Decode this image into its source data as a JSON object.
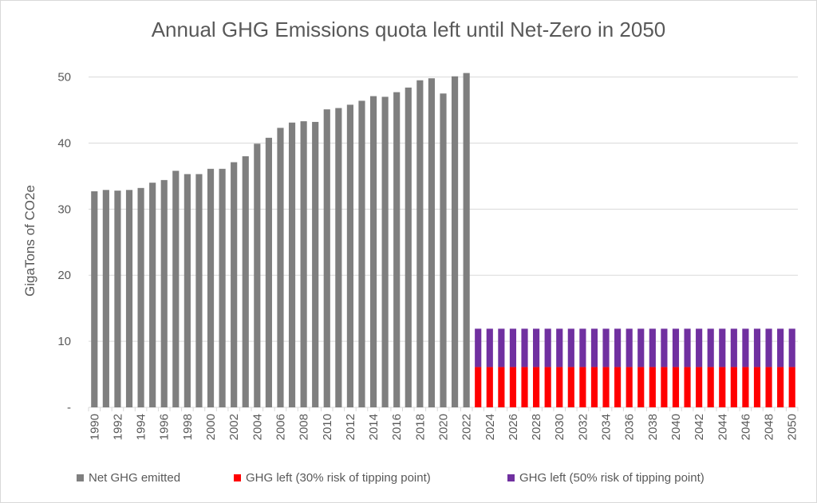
{
  "chart_data": {
    "type": "bar",
    "stacked": true,
    "title": "Annual GHG Emissions quota left until Net-Zero in 2050",
    "ylabel": "GigaTons of CO2e",
    "xlabel": "",
    "ylim": [
      0,
      52
    ],
    "yticks": [
      "-",
      "10",
      "20",
      "30",
      "40",
      "50"
    ],
    "ytick_values": [
      0,
      10,
      20,
      30,
      40,
      50
    ],
    "gridlines": true,
    "legend_position": "bottom",
    "categories": [
      1990,
      1991,
      1992,
      1993,
      1994,
      1995,
      1996,
      1997,
      1998,
      1999,
      2000,
      2001,
      2002,
      2003,
      2004,
      2005,
      2006,
      2007,
      2008,
      2009,
      2010,
      2011,
      2012,
      2013,
      2014,
      2015,
      2016,
      2017,
      2018,
      2019,
      2020,
      2021,
      2022,
      2023,
      2024,
      2025,
      2026,
      2027,
      2028,
      2029,
      2030,
      2031,
      2032,
      2033,
      2034,
      2035,
      2036,
      2037,
      2038,
      2039,
      2040,
      2041,
      2042,
      2043,
      2044,
      2045,
      2046,
      2047,
      2048,
      2049,
      2050
    ],
    "series": [
      {
        "name": "Net GHG emitted",
        "color": "#7f7f7f",
        "values": [
          32.7,
          32.9,
          32.8,
          32.9,
          33.2,
          34.0,
          34.4,
          35.8,
          35.3,
          35.3,
          36.1,
          36.1,
          37.1,
          38.0,
          39.9,
          40.8,
          42.3,
          43.1,
          43.3,
          43.2,
          45.1,
          45.3,
          45.8,
          46.4,
          47.1,
          47.0,
          47.7,
          48.4,
          49.5,
          49.8,
          47.5,
          50.1,
          50.6,
          0,
          0,
          0,
          0,
          0,
          0,
          0,
          0,
          0,
          0,
          0,
          0,
          0,
          0,
          0,
          0,
          0,
          0,
          0,
          0,
          0,
          0,
          0,
          0,
          0,
          0,
          0,
          0
        ]
      },
      {
        "name": "GHG left (30% risk of tipping point)",
        "color": "#ff0000",
        "values": [
          0,
          0,
          0,
          0,
          0,
          0,
          0,
          0,
          0,
          0,
          0,
          0,
          0,
          0,
          0,
          0,
          0,
          0,
          0,
          0,
          0,
          0,
          0,
          0,
          0,
          0,
          0,
          0,
          0,
          0,
          0,
          0,
          0,
          6.1,
          6.1,
          6.1,
          6.1,
          6.1,
          6.1,
          6.1,
          6.1,
          6.1,
          6.1,
          6.1,
          6.1,
          6.1,
          6.1,
          6.1,
          6.1,
          6.1,
          6.1,
          6.1,
          6.1,
          6.1,
          6.1,
          6.1,
          6.1,
          6.1,
          6.1,
          6.1,
          6.1
        ]
      },
      {
        "name": "GHG left (50% risk of tipping point)",
        "color": "#7030a0",
        "values": [
          0,
          0,
          0,
          0,
          0,
          0,
          0,
          0,
          0,
          0,
          0,
          0,
          0,
          0,
          0,
          0,
          0,
          0,
          0,
          0,
          0,
          0,
          0,
          0,
          0,
          0,
          0,
          0,
          0,
          0,
          0,
          0,
          0,
          5.8,
          5.8,
          5.8,
          5.8,
          5.8,
          5.8,
          5.8,
          5.8,
          5.8,
          5.8,
          5.8,
          5.8,
          5.8,
          5.8,
          5.8,
          5.8,
          5.8,
          5.8,
          5.8,
          5.8,
          5.8,
          5.8,
          5.8,
          5.8,
          5.8,
          5.8,
          5.8,
          5.8
        ]
      }
    ]
  }
}
